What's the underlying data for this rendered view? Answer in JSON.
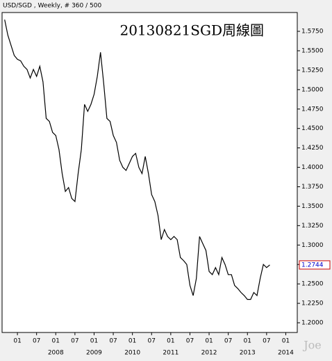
{
  "chart_data": {
    "type": "line",
    "title": "USD/SGD , Weekly, # 360 / 500",
    "annotation": "20130821SGD周線圖",
    "watermark": "Joe",
    "color": "#000000",
    "x": [
      "2006-09",
      "2006-10",
      "2006-11",
      "2006-12",
      "2007-01",
      "2007-02",
      "2007-03",
      "2007-04",
      "2007-05",
      "2007-06",
      "2007-07",
      "2007-08",
      "2007-09",
      "2007-10",
      "2007-11",
      "2007-12",
      "2008-01",
      "2008-02",
      "2008-03",
      "2008-04",
      "2008-05",
      "2008-06",
      "2008-07",
      "2008-08",
      "2008-09",
      "2008-10",
      "2008-11",
      "2008-12",
      "2009-01",
      "2009-02",
      "2009-03",
      "2009-04",
      "2009-05",
      "2009-06",
      "2009-07",
      "2009-08",
      "2009-09",
      "2009-10",
      "2009-11",
      "2009-12",
      "2010-01",
      "2010-02",
      "2010-03",
      "2010-04",
      "2010-05",
      "2010-06",
      "2010-07",
      "2010-08",
      "2010-09",
      "2010-10",
      "2010-11",
      "2010-12",
      "2011-01",
      "2011-02",
      "2011-03",
      "2011-04",
      "2011-05",
      "2011-06",
      "2011-07",
      "2011-08",
      "2011-09",
      "2011-10",
      "2011-11",
      "2011-12",
      "2012-01",
      "2012-02",
      "2012-03",
      "2012-04",
      "2012-05",
      "2012-06",
      "2012-07",
      "2012-08",
      "2012-09",
      "2012-10",
      "2012-11",
      "2012-12",
      "2013-01",
      "2013-02",
      "2013-03",
      "2013-04",
      "2013-05",
      "2013-06",
      "2013-07",
      "2013-08"
    ],
    "values": [
      1.59,
      1.57,
      1.557,
      1.544,
      1.539,
      1.537,
      1.53,
      1.526,
      1.515,
      1.526,
      1.517,
      1.53,
      1.51,
      1.463,
      1.459,
      1.445,
      1.441,
      1.423,
      1.392,
      1.369,
      1.374,
      1.36,
      1.356,
      1.392,
      1.423,
      1.481,
      1.472,
      1.481,
      1.494,
      1.517,
      1.548,
      1.508,
      1.463,
      1.459,
      1.441,
      1.432,
      1.409,
      1.4,
      1.396,
      1.405,
      1.414,
      1.418,
      1.4,
      1.392,
      1.414,
      1.392,
      1.365,
      1.356,
      1.338,
      1.307,
      1.32,
      1.311,
      1.307,
      1.311,
      1.307,
      1.284,
      1.28,
      1.275,
      1.248,
      1.235,
      1.257,
      1.311,
      1.302,
      1.293,
      1.266,
      1.262,
      1.271,
      1.262,
      1.284,
      1.275,
      1.262,
      1.262,
      1.248,
      1.244,
      1.239,
      1.235,
      1.23,
      1.23,
      1.239,
      1.235,
      1.257,
      1.275,
      1.271,
      1.2744
    ],
    "last_price": {
      "value": 1.2744,
      "label": "1.2744"
    },
    "xlim": [
      2006.6,
      2014.3
    ],
    "xticks": [
      {
        "value": 2007,
        "label": "01"
      },
      {
        "value": 2007.5,
        "label": "07"
      },
      {
        "value": 2008,
        "label": "01"
      },
      {
        "value": 2008.5,
        "label": "07"
      },
      {
        "value": 2009,
        "label": "01"
      },
      {
        "value": 2009.5,
        "label": "07"
      },
      {
        "value": 2010,
        "label": "01"
      },
      {
        "value": 2010.5,
        "label": "07"
      },
      {
        "value": 2011,
        "label": "01"
      },
      {
        "value": 2011.5,
        "label": "07"
      },
      {
        "value": 2012,
        "label": "01"
      },
      {
        "value": 2012.5,
        "label": "07"
      },
      {
        "value": 2013,
        "label": "01"
      },
      {
        "value": 2013.5,
        "label": "07"
      },
      {
        "value": 2014,
        "label": "01"
      }
    ],
    "year_ticks": [
      2008,
      2009,
      2010,
      2011,
      2012,
      2013,
      2014
    ],
    "ylim": [
      1.1875,
      1.5992
    ],
    "yticks": [
      {
        "value": 1.2,
        "label": "1.2000"
      },
      {
        "value": 1.225,
        "label": "1.2250"
      },
      {
        "value": 1.25,
        "label": "1.2500"
      },
      {
        "value": 1.275,
        "label": "1.2750"
      },
      {
        "value": 1.3,
        "label": "1.3000"
      },
      {
        "value": 1.325,
        "label": "1.3250"
      },
      {
        "value": 1.35,
        "label": "1.3500"
      },
      {
        "value": 1.375,
        "label": "1.3750"
      },
      {
        "value": 1.4,
        "label": "1.4000"
      },
      {
        "value": 1.425,
        "label": "1.4250"
      },
      {
        "value": 1.45,
        "label": "1.4500"
      },
      {
        "value": 1.475,
        "label": "1.4750"
      },
      {
        "value": 1.5,
        "label": "1.5000"
      },
      {
        "value": 1.525,
        "label": "1.5250"
      },
      {
        "value": 1.55,
        "label": "1.5500"
      },
      {
        "value": 1.575,
        "label": "1.5750"
      }
    ]
  }
}
